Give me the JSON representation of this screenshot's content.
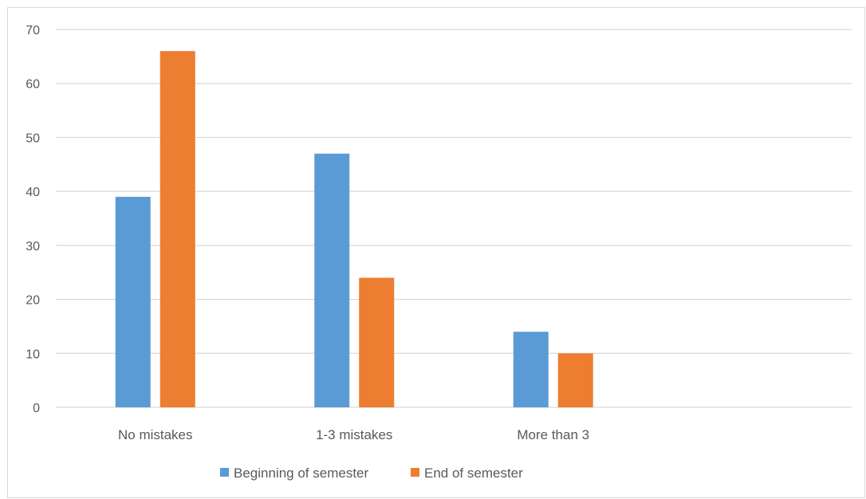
{
  "chart_data": {
    "type": "bar",
    "categories": [
      "No mistakes",
      "1-3 mistakes",
      "More than 3",
      ""
    ],
    "series": [
      {
        "name": "Beginning of semester",
        "values": [
          39,
          47,
          14,
          null
        ],
        "color": "#5b9bd5"
      },
      {
        "name": "End of semester",
        "values": [
          66,
          24,
          10,
          null
        ],
        "color": "#ed7d31"
      }
    ],
    "ylim": [
      0,
      70
    ],
    "yticks": [
      0,
      10,
      20,
      30,
      40,
      50,
      60,
      70
    ],
    "grid": true,
    "legend": "bottom",
    "gridline_color": "#d9d9d9"
  }
}
